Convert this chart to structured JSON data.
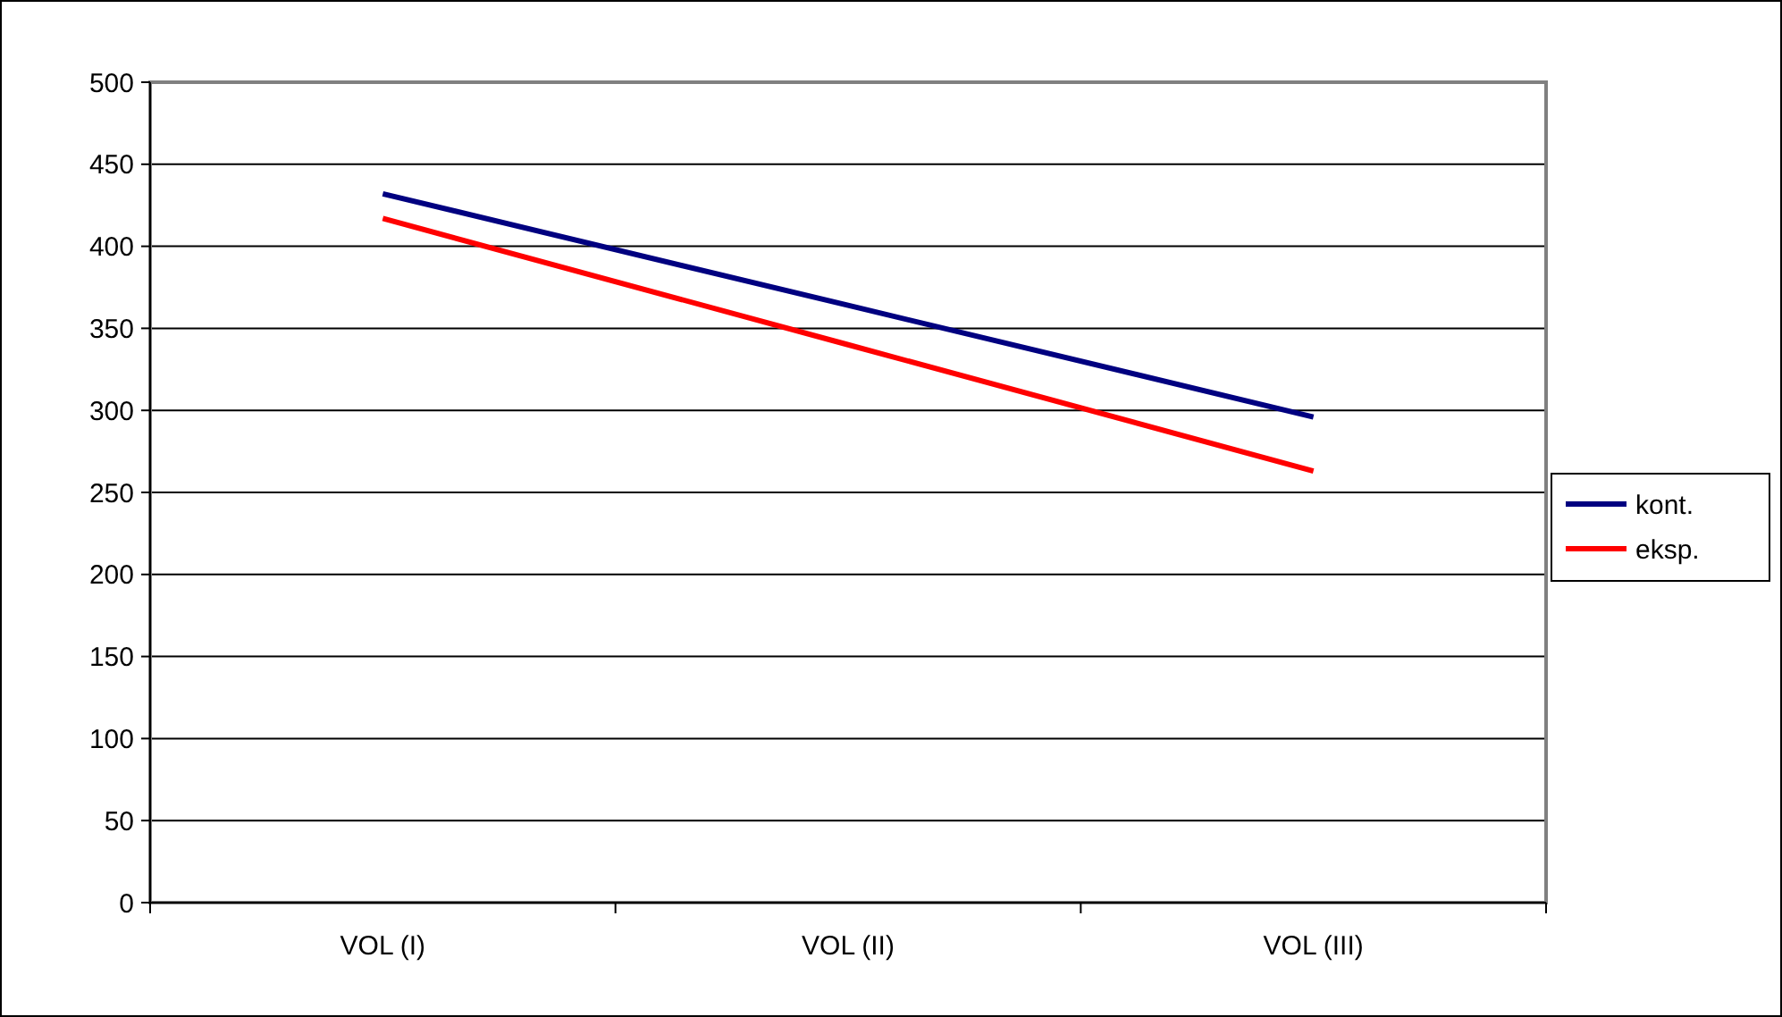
{
  "chart_data": {
    "type": "line",
    "categories": [
      "VOL (I)",
      "VOL (II)",
      "VOL (III)"
    ],
    "series": [
      {
        "name": "kont.",
        "color": "#000080",
        "values": [
          432,
          364,
          296
        ]
      },
      {
        "name": "eksp.",
        "color": "#ff0000",
        "values": [
          417,
          340,
          263
        ]
      }
    ],
    "ylim": [
      0,
      500
    ],
    "yticks": [
      0,
      50,
      100,
      150,
      200,
      250,
      300,
      350,
      400,
      450,
      500
    ],
    "grid": "y",
    "legend": "right",
    "marker": "none",
    "line_style": "solid"
  }
}
